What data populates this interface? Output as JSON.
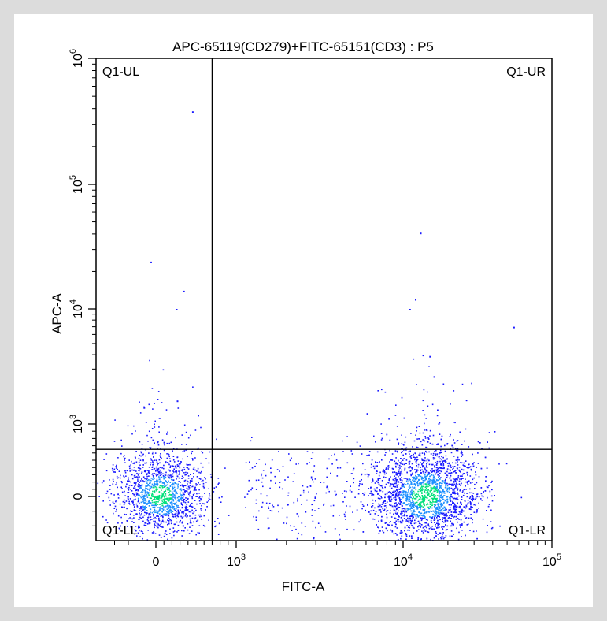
{
  "colors": {
    "page_background": "#dcdcdc",
    "panel_background": "#ffffff",
    "axis": "#000000",
    "density_low": "#1a1aff",
    "density_mid": "#1e90ff",
    "density_high": "#00e07a"
  },
  "chart_data": {
    "type": "scatter",
    "subtype": "flow-cytometry density dot plot",
    "title": "APC-65119(CD279)+FITC-65151(CD3) : P5",
    "xlabel": "FITC-A",
    "ylabel": "APC-A",
    "x_scale": "biexponential",
    "y_scale": "biexponential",
    "x_ticks": [
      {
        "value": 0,
        "base": "0",
        "exp": ""
      },
      {
        "value": 1000,
        "base": "10",
        "exp": "3"
      },
      {
        "value": 10000,
        "base": "10",
        "exp": "4"
      },
      {
        "value": 100000,
        "base": "10",
        "exp": "5"
      }
    ],
    "y_ticks": [
      {
        "value": 0,
        "base": "0",
        "exp": ""
      },
      {
        "value": 1000,
        "base": "10",
        "exp": "3"
      },
      {
        "value": 10000,
        "base": "10",
        "exp": "4"
      },
      {
        "value": 100000,
        "base": "10",
        "exp": "5"
      },
      {
        "value": 1000000,
        "base": "10",
        "exp": "6"
      }
    ],
    "xlim": [
      -400,
      100000
    ],
    "ylim": [
      -300,
      1000000
    ],
    "quadrant_gate": {
      "x": 700,
      "y": 650
    },
    "quadrants": [
      {
        "name": "Q1-UL",
        "position": "top-left"
      },
      {
        "name": "Q1-UR",
        "position": "top-right"
      },
      {
        "name": "Q1-LL",
        "position": "bottom-left"
      },
      {
        "name": "Q1-LR",
        "position": "bottom-right"
      }
    ],
    "populations": [
      {
        "name": "CD3-negative cluster",
        "center_x": 45,
        "center_y": 20,
        "approx_events": 1500
      },
      {
        "name": "CD3-positive cluster",
        "center_x": 14000,
        "center_y": 20,
        "approx_events": 2700
      }
    ],
    "outlier_events": [
      {
        "x": 450,
        "y": 380000
      },
      {
        "x": -40,
        "y": 24000
      },
      {
        "x": 340,
        "y": 14000
      },
      {
        "x": 250,
        "y": 10000
      },
      {
        "x": 13000,
        "y": 41000
      },
      {
        "x": 12000,
        "y": 12000
      },
      {
        "x": 11000,
        "y": 10000
      },
      {
        "x": 55000,
        "y": 7000
      },
      {
        "x": 13500,
        "y": 4000
      },
      {
        "x": 15000,
        "y": 3900
      },
      {
        "x": 16000,
        "y": 2600
      },
      {
        "x": -90,
        "y": 1400
      },
      {
        "x": 260,
        "y": 1600
      },
      {
        "x": 520,
        "y": 1200
      }
    ]
  }
}
